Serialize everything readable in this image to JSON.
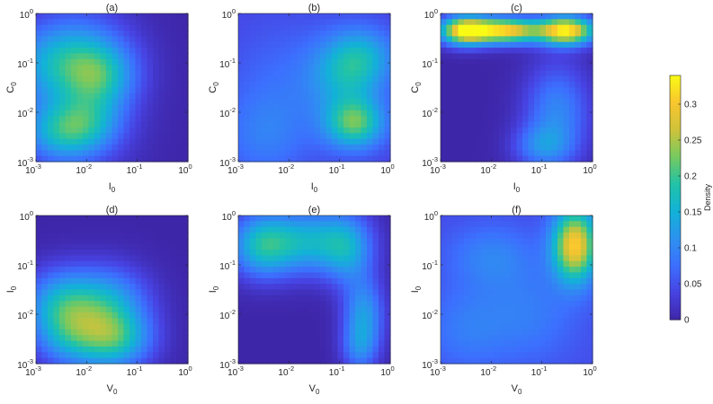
{
  "figure": {
    "colorbar": {
      "label": "Density",
      "range": [
        0,
        0.34
      ],
      "ticks": [
        "0",
        "0.05",
        "0.1",
        "0.15",
        "0.2",
        "0.25",
        "0.3"
      ],
      "tick_values": [
        0,
        0.05,
        0.1,
        0.15,
        0.2,
        0.25,
        0.3
      ],
      "colormap": "parula",
      "colormap_stops": [
        "#3e26a8",
        "#4743e3",
        "#3c6ffe",
        "#2d92ef",
        "#12b2d7",
        "#21c3a7",
        "#76c95f",
        "#cfc33a",
        "#f9c62e",
        "#f9fb15"
      ]
    }
  },
  "chart_data": [
    {
      "type": "heatmap",
      "panel": "a",
      "title": "(a)",
      "xlabel": "I",
      "xlabel_sub": "0",
      "ylabel": "C",
      "ylabel_sub": "0",
      "xscale": "log",
      "yscale": "log",
      "xlim": [
        0.001,
        1
      ],
      "ylim": [
        0.001,
        1
      ],
      "x_ticks": [
        {
          "base": "10",
          "exp": "-3"
        },
        {
          "base": "10",
          "exp": "-2"
        },
        {
          "base": "10",
          "exp": "-1"
        },
        {
          "base": "10",
          "exp": "0"
        }
      ],
      "y_ticks": [
        {
          "base": "10",
          "exp": "-3"
        },
        {
          "base": "10",
          "exp": "-2"
        },
        {
          "base": "10",
          "exp": "-1"
        },
        {
          "base": "10",
          "exp": "0"
        }
      ],
      "background_density": 0,
      "density_blobs": [
        {
          "x": 0.004,
          "y": 0.1,
          "sx": 0.75,
          "sy": 0.55,
          "peak": 0.13
        },
        {
          "x": 0.003,
          "y": 0.004,
          "sx": 0.5,
          "sy": 0.4,
          "peak": 0.12
        },
        {
          "x": 0.02,
          "y": 0.05,
          "sx": 0.45,
          "sy": 0.45,
          "peak": 0.09
        },
        {
          "x": 0.012,
          "y": 0.006,
          "sx": 0.45,
          "sy": 0.4,
          "peak": 0.08
        },
        {
          "x": 0.007,
          "y": 0.03,
          "sx": 0.8,
          "sy": 1.3,
          "peak": 0.06
        }
      ]
    },
    {
      "type": "heatmap",
      "panel": "b",
      "title": "(b)",
      "xlabel": "I",
      "xlabel_sub": "0",
      "ylabel": "C",
      "ylabel_sub": "0",
      "xscale": "log",
      "yscale": "log",
      "xlim": [
        0.001,
        1
      ],
      "ylim": [
        0.001,
        1
      ],
      "x_ticks": [
        {
          "base": "10",
          "exp": "-3"
        },
        {
          "base": "10",
          "exp": "-2"
        },
        {
          "base": "10",
          "exp": "-1"
        },
        {
          "base": "10",
          "exp": "0"
        }
      ],
      "y_ticks": [
        {
          "base": "10",
          "exp": "-3"
        },
        {
          "base": "10",
          "exp": "-2"
        },
        {
          "base": "10",
          "exp": "-1"
        },
        {
          "base": "10",
          "exp": "0"
        }
      ],
      "background_density": 0.035,
      "density_blobs": [
        {
          "x": 0.2,
          "y": 0.006,
          "sx": 0.4,
          "sy": 0.35,
          "peak": 0.17
        },
        {
          "x": 0.15,
          "y": 0.06,
          "sx": 0.5,
          "sy": 0.5,
          "peak": 0.1
        },
        {
          "x": 0.3,
          "y": 0.15,
          "sx": 0.45,
          "sy": 0.4,
          "peak": 0.07
        },
        {
          "x": 0.003,
          "y": 0.003,
          "sx": 0.55,
          "sy": 0.6,
          "peak": 0.04
        },
        {
          "x": 0.01,
          "y": 0.03,
          "sx": 0.9,
          "sy": 1.0,
          "peak": 0.04
        }
      ]
    },
    {
      "type": "heatmap",
      "panel": "c",
      "title": "(c)",
      "xlabel": "I",
      "xlabel_sub": "0",
      "ylabel": "C",
      "ylabel_sub": "0",
      "xscale": "log",
      "yscale": "log",
      "xlim": [
        0.001,
        1
      ],
      "ylim": [
        0.001,
        1
      ],
      "x_ticks": [
        {
          "base": "10",
          "exp": "-3"
        },
        {
          "base": "10",
          "exp": "-2"
        },
        {
          "base": "10",
          "exp": "-1"
        },
        {
          "base": "10",
          "exp": "0"
        }
      ],
      "y_ticks": [
        {
          "base": "10",
          "exp": "-3"
        },
        {
          "base": "10",
          "exp": "-2"
        },
        {
          "base": "10",
          "exp": "-1"
        },
        {
          "base": "10",
          "exp": "0"
        }
      ],
      "background_density": 0,
      "density_blobs": [
        {
          "x": 0.003,
          "y": 0.45,
          "sx": 0.35,
          "sy": 0.2,
          "peak": 0.32
        },
        {
          "x": 0.02,
          "y": 0.45,
          "sx": 0.45,
          "sy": 0.18,
          "peak": 0.3
        },
        {
          "x": 0.3,
          "y": 0.45,
          "sx": 0.4,
          "sy": 0.2,
          "peak": 0.33
        },
        {
          "x": 0.2,
          "y": 0.01,
          "sx": 0.45,
          "sy": 0.7,
          "peak": 0.1
        },
        {
          "x": 0.1,
          "y": 0.002,
          "sx": 0.4,
          "sy": 0.3,
          "peak": 0.08
        }
      ]
    },
    {
      "type": "heatmap",
      "panel": "d",
      "title": "(d)",
      "xlabel": "V",
      "xlabel_sub": "0",
      "ylabel": "I",
      "ylabel_sub": "0",
      "xscale": "log",
      "yscale": "log",
      "xlim": [
        0.001,
        1
      ],
      "ylim": [
        0.001,
        1
      ],
      "x_ticks": [
        {
          "base": "10",
          "exp": "-3"
        },
        {
          "base": "10",
          "exp": "-2"
        },
        {
          "base": "10",
          "exp": "-1"
        },
        {
          "base": "10",
          "exp": "0"
        }
      ],
      "y_ticks": [
        {
          "base": "10",
          "exp": "-3"
        },
        {
          "base": "10",
          "exp": "-2"
        },
        {
          "base": "10",
          "exp": "-1"
        },
        {
          "base": "10",
          "exp": "0"
        }
      ],
      "background_density": 0,
      "density_blobs": [
        {
          "x": 0.003,
          "y": 0.015,
          "sx": 0.5,
          "sy": 0.5,
          "peak": 0.13
        },
        {
          "x": 0.04,
          "y": 0.003,
          "sx": 0.5,
          "sy": 0.4,
          "peak": 0.12
        },
        {
          "x": 0.015,
          "y": 0.006,
          "sx": 0.6,
          "sy": 0.6,
          "peak": 0.1
        },
        {
          "x": 0.03,
          "y": 0.02,
          "sx": 0.55,
          "sy": 0.5,
          "peak": 0.08
        },
        {
          "x": 0.004,
          "y": 0.003,
          "sx": 0.45,
          "sy": 0.4,
          "peak": 0.06
        }
      ]
    },
    {
      "type": "heatmap",
      "panel": "e",
      "title": "(e)",
      "xlabel": "V",
      "xlabel_sub": "0",
      "ylabel": "I",
      "ylabel_sub": "0",
      "xscale": "log",
      "yscale": "log",
      "xlim": [
        0.001,
        1
      ],
      "ylim": [
        0.001,
        1
      ],
      "x_ticks": [
        {
          "base": "10",
          "exp": "-3"
        },
        {
          "base": "10",
          "exp": "-2"
        },
        {
          "base": "10",
          "exp": "-1"
        },
        {
          "base": "10",
          "exp": "0"
        }
      ],
      "y_ticks": [
        {
          "base": "10",
          "exp": "-3"
        },
        {
          "base": "10",
          "exp": "-2"
        },
        {
          "base": "10",
          "exp": "-1"
        },
        {
          "base": "10",
          "exp": "0"
        }
      ],
      "background_density": 0,
      "density_blobs": [
        {
          "x": 0.003,
          "y": 0.25,
          "sx": 0.45,
          "sy": 0.45,
          "peak": 0.16
        },
        {
          "x": 0.03,
          "y": 0.3,
          "sx": 0.6,
          "sy": 0.45,
          "peak": 0.14
        },
        {
          "x": 0.15,
          "y": 0.2,
          "sx": 0.35,
          "sy": 0.5,
          "peak": 0.1
        },
        {
          "x": 0.3,
          "y": 0.01,
          "sx": 0.28,
          "sy": 0.5,
          "peak": 0.12
        },
        {
          "x": 0.25,
          "y": 0.002,
          "sx": 0.25,
          "sy": 0.35,
          "peak": 0.08
        }
      ]
    },
    {
      "type": "heatmap",
      "panel": "f",
      "title": "(f)",
      "xlabel": "V",
      "xlabel_sub": "0",
      "ylabel": "I",
      "ylabel_sub": "0",
      "xscale": "log",
      "yscale": "log",
      "xlim": [
        0.001,
        1
      ],
      "ylim": [
        0.001,
        1
      ],
      "x_ticks": [
        {
          "base": "10",
          "exp": "-3"
        },
        {
          "base": "10",
          "exp": "-2"
        },
        {
          "base": "10",
          "exp": "-1"
        },
        {
          "base": "10",
          "exp": "0"
        }
      ],
      "y_ticks": [
        {
          "base": "10",
          "exp": "-3"
        },
        {
          "base": "10",
          "exp": "-2"
        },
        {
          "base": "10",
          "exp": "-1"
        },
        {
          "base": "10",
          "exp": "0"
        }
      ],
      "background_density": 0.045,
      "density_blobs": [
        {
          "x": 0.45,
          "y": 0.25,
          "sx": 0.3,
          "sy": 0.5,
          "peak": 0.26
        },
        {
          "x": 0.01,
          "y": 0.15,
          "sx": 0.6,
          "sy": 0.45,
          "peak": 0.05
        },
        {
          "x": 0.05,
          "y": 0.01,
          "sx": 0.7,
          "sy": 0.7,
          "peak": 0.045
        },
        {
          "x": 0.003,
          "y": 0.005,
          "sx": 0.55,
          "sy": 0.6,
          "peak": 0.04
        }
      ]
    }
  ]
}
